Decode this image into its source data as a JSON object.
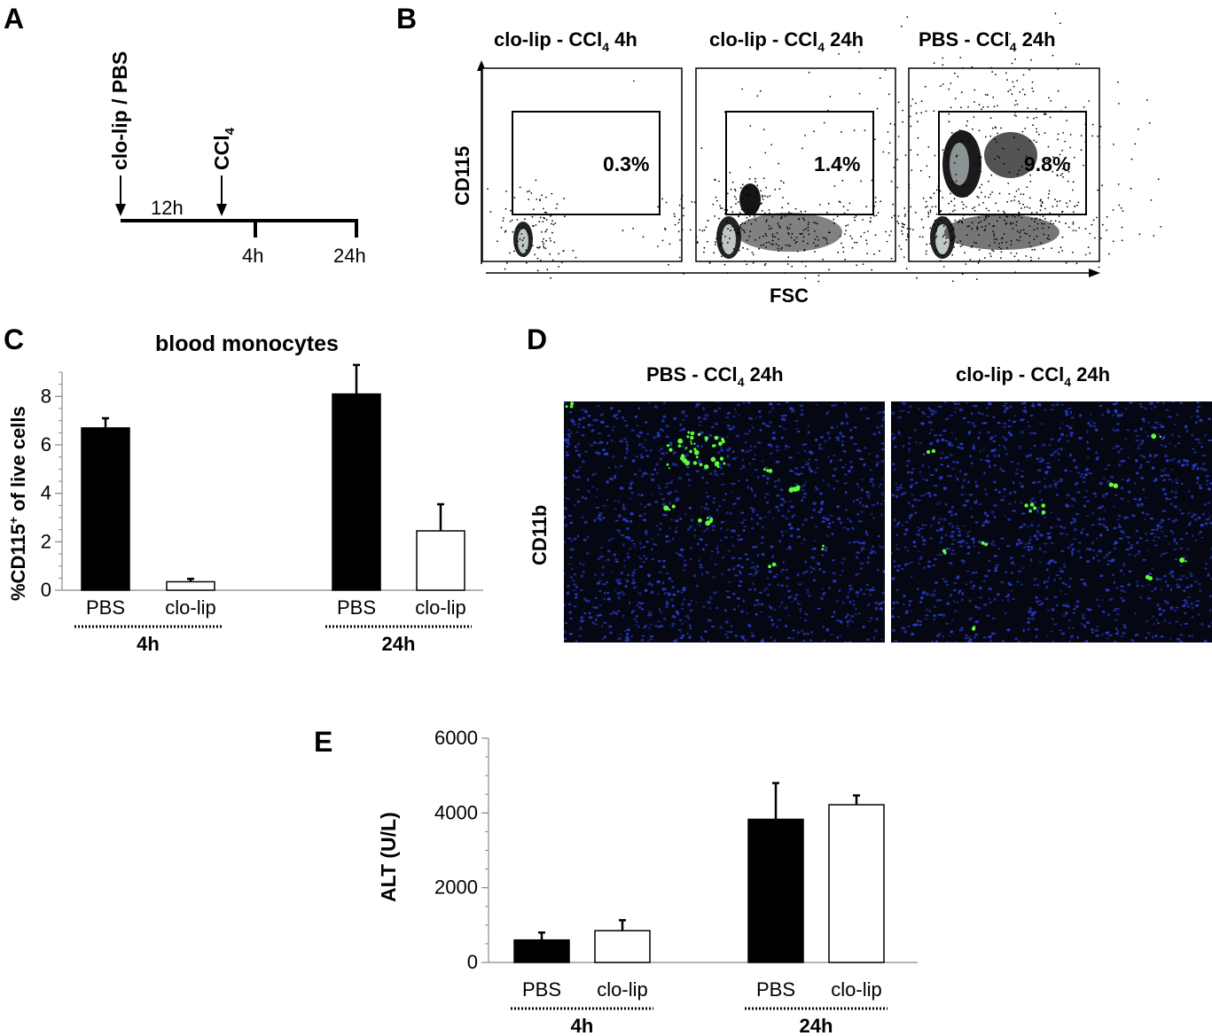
{
  "panel_labels": {
    "a": "A",
    "b": "B",
    "c": "C",
    "d": "D",
    "e": "E"
  },
  "panelA": {
    "treatment_label": "clo-lip / PBS",
    "ccl4_label_main": "CCl",
    "ccl4_label_sub": "4",
    "interval_label": "12h",
    "tick_4h": "4h",
    "tick_24h": "24h"
  },
  "panelB": {
    "plots": [
      {
        "title_pre": "clo-lip - CCl",
        "title_sub": "4",
        "title_post": " 4h",
        "percent": "0.3%"
      },
      {
        "title_pre": "clo-lip - CCl",
        "title_sub": "4",
        "title_post": " 24h",
        "percent": "1.4%"
      },
      {
        "title_pre": "PBS - CCl",
        "title_sub": "4",
        "title_post": " 24h",
        "percent": "9.8%"
      }
    ],
    "ylabel": "CD115",
    "xlabel": "FSC"
  },
  "panelD": {
    "titles": [
      {
        "pre": "PBS - CCl",
        "sub": "4",
        "post": " 24h"
      },
      {
        "pre": "clo-lip - CCl",
        "sub": "4",
        "post": " 24h"
      }
    ],
    "ylabel": "CD11b",
    "colors": {
      "nuclei": "#2a3fd0",
      "cd11b": "#5dff3a",
      "background": "#050712"
    }
  },
  "chart_data": [
    {
      "type": "bar",
      "panel": "C",
      "title": "blood monocytes",
      "ylabel_pre": "%CD115",
      "ylabel_sup": "+",
      "ylabel_post": " of live cells",
      "ylim": [
        0,
        9
      ],
      "yticks": [
        "0",
        "2",
        "4",
        "6",
        "8"
      ],
      "groups": [
        {
          "label": "4h",
          "bars": [
            {
              "label": "PBS",
              "value": 6.7,
              "error": 0.4,
              "fill": "#000000"
            },
            {
              "label": "clo-lip",
              "value": 0.35,
              "error": 0.12,
              "fill": "#ffffff"
            }
          ]
        },
        {
          "label": "24h",
          "bars": [
            {
              "label": "PBS",
              "value": 8.1,
              "error": 1.2,
              "fill": "#000000"
            },
            {
              "label": "clo-lip",
              "value": 2.45,
              "error": 1.1,
              "fill": "#ffffff"
            }
          ]
        }
      ]
    },
    {
      "type": "bar",
      "panel": "E",
      "title": "",
      "ylabel": "ALT (U/L)",
      "ylim": [
        0,
        6000
      ],
      "yticks": [
        "0",
        "2000",
        "4000",
        "6000"
      ],
      "groups": [
        {
          "label": "4h",
          "bars": [
            {
              "label": "PBS",
              "value": 600,
              "error": 200,
              "fill": "#000000"
            },
            {
              "label": "clo-lip",
              "value": 850,
              "error": 280,
              "fill": "#ffffff"
            }
          ]
        },
        {
          "label": "24h",
          "bars": [
            {
              "label": "PBS",
              "value": 3830,
              "error": 970,
              "fill": "#000000"
            },
            {
              "label": "clo-lip",
              "value": 4220,
              "error": 250,
              "fill": "#ffffff"
            }
          ]
        }
      ]
    }
  ]
}
